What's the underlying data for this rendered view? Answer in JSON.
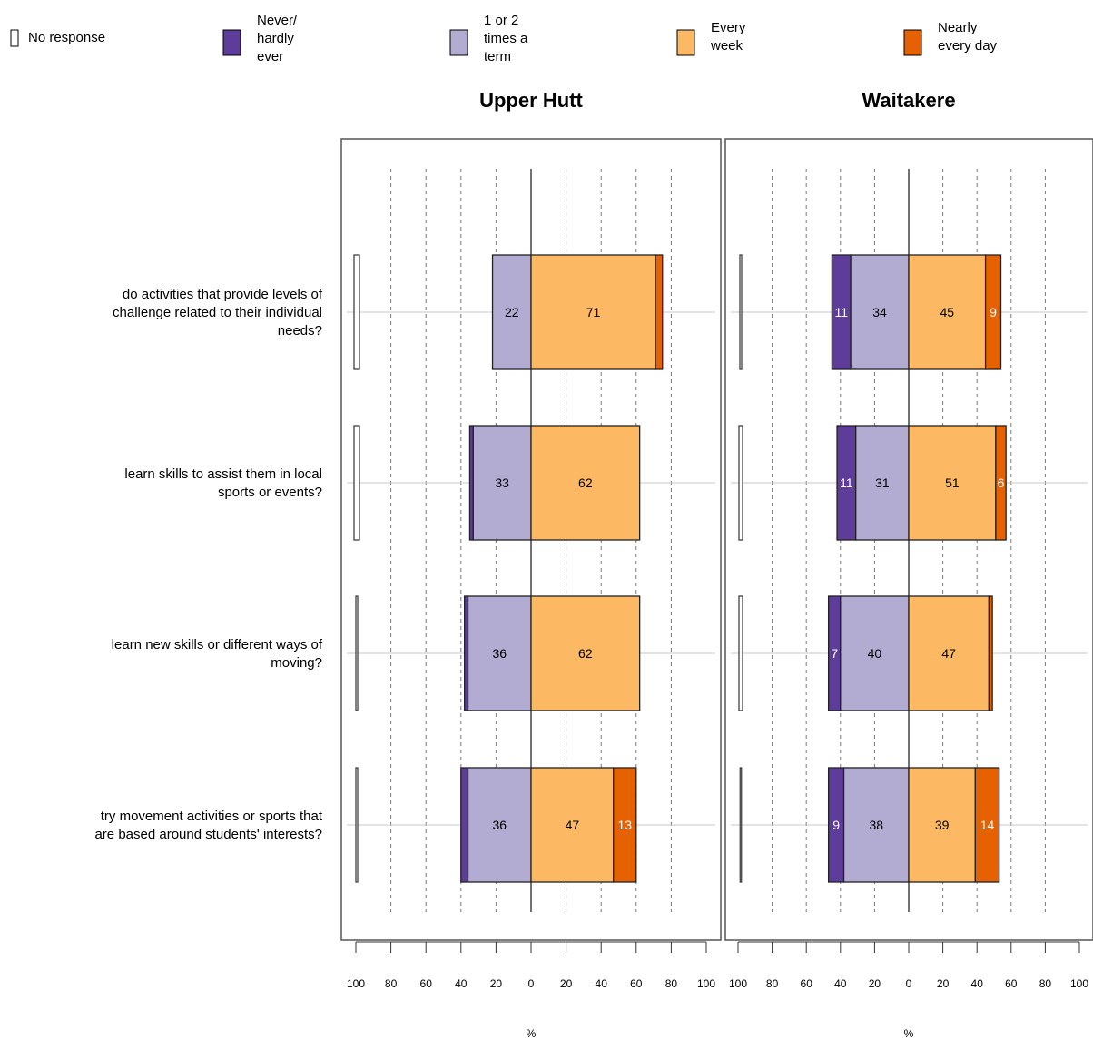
{
  "legend": [
    {
      "key": "no_response",
      "lines": [
        "No response"
      ],
      "color": "#ffffff"
    },
    {
      "key": "never",
      "lines": [
        "Never/",
        "hardly",
        "ever"
      ],
      "color": "#5E3C99"
    },
    {
      "key": "term",
      "lines": [
        "1 or 2",
        "times a",
        "term"
      ],
      "color": "#B2ABD2"
    },
    {
      "key": "week",
      "lines": [
        "Every",
        "week"
      ],
      "color": "#FDB863"
    },
    {
      "key": "day",
      "lines": [
        "Nearly",
        "every day"
      ],
      "color": "#E66101"
    }
  ],
  "questions": [
    [
      "do activities that provide levels of",
      "challenge related to their individual",
      "needs?"
    ],
    [
      "learn skills to assist them in local",
      "sports or events?"
    ],
    [
      "learn new skills or different ways of",
      "moving?"
    ],
    [
      "try movement activities or sports that",
      "are based around students' interests?"
    ]
  ],
  "chart_data": {
    "type": "bar",
    "orientation": "horizontal-diverging",
    "xlabel": "%",
    "xlim": [
      -100,
      100
    ],
    "tick_labels": [
      "100",
      "80",
      "60",
      "40",
      "20",
      "0",
      "20",
      "40",
      "60",
      "80",
      "100"
    ],
    "categories": [
      "do activities that provide levels of challenge related to their individual needs?",
      "learn skills to assist them in local sports or events?",
      "learn new skills or different ways of moving?",
      "try movement activities or sports that are based around students' interests?"
    ],
    "panels": [
      {
        "title": "Upper Hutt",
        "series": [
          {
            "name": "No response",
            "values": [
              3,
              3,
              1,
              1
            ]
          },
          {
            "name": "Never/ hardly ever",
            "values": [
              0,
              2,
              2,
              4
            ]
          },
          {
            "name": "1 or 2 times a term",
            "values": [
              22,
              33,
              36,
              36
            ]
          },
          {
            "name": "Every week",
            "values": [
              71,
              62,
              62,
              47
            ]
          },
          {
            "name": "Nearly every day",
            "values": [
              4,
              0,
              0,
              13
            ]
          }
        ]
      },
      {
        "title": "Waitakere",
        "series": [
          {
            "name": "No response",
            "values": [
              1,
              2,
              2,
              0
            ]
          },
          {
            "name": "Never/ hardly ever",
            "values": [
              11,
              11,
              7,
              9
            ]
          },
          {
            "name": "1 or 2 times a term",
            "values": [
              34,
              31,
              40,
              38
            ]
          },
          {
            "name": "Every week",
            "values": [
              45,
              51,
              47,
              39
            ]
          },
          {
            "name": "Nearly every day",
            "values": [
              9,
              6,
              2,
              14
            ]
          }
        ]
      }
    ],
    "show_labels_min": 5,
    "grid": true,
    "legend_position": "top"
  }
}
